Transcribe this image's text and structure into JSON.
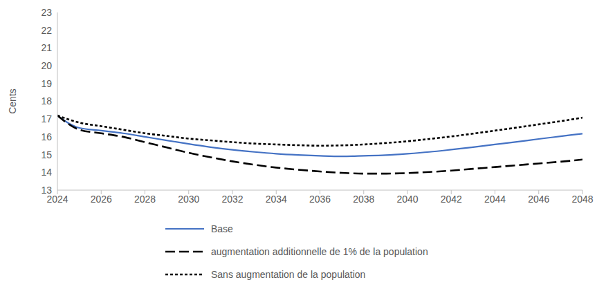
{
  "chart_data": {
    "type": "line",
    "y_label": "Cents",
    "x": [
      2024,
      2025,
      2026,
      2027,
      2028,
      2029,
      2030,
      2031,
      2032,
      2033,
      2034,
      2035,
      2036,
      2037,
      2038,
      2039,
      2040,
      2041,
      2042,
      2043,
      2044,
      2045,
      2046,
      2047,
      2048
    ],
    "xlim": [
      2024,
      2048
    ],
    "xticks": [
      2024,
      2026,
      2028,
      2030,
      2032,
      2034,
      2036,
      2038,
      2040,
      2042,
      2044,
      2046,
      2048
    ],
    "ylim": [
      13,
      23
    ],
    "yticks": [
      13,
      14,
      15,
      16,
      17,
      18,
      19,
      20,
      21,
      22,
      23
    ],
    "grid": false,
    "legend": "bottom",
    "series": [
      {
        "name": "Base",
        "color": "#4472c4",
        "line_style": "solid",
        "values": [
          17.2,
          16.5,
          16.35,
          16.2,
          16.0,
          15.8,
          15.6,
          15.42,
          15.27,
          15.15,
          15.05,
          14.98,
          14.93,
          14.9,
          14.93,
          14.97,
          15.05,
          15.15,
          15.28,
          15.42,
          15.57,
          15.72,
          15.88,
          16.03,
          16.18
        ]
      },
      {
        "name": "augmentation additionnelle de 1% de la population",
        "color": "#000000",
        "line_style": "dashed",
        "values": [
          17.2,
          16.4,
          16.2,
          16.0,
          15.7,
          15.4,
          15.1,
          14.85,
          14.62,
          14.43,
          14.27,
          14.15,
          14.05,
          13.97,
          13.93,
          13.93,
          13.96,
          14.02,
          14.1,
          14.2,
          14.3,
          14.4,
          14.5,
          14.6,
          14.72
        ]
      },
      {
        "name": "Sans augmentation de la population",
        "color": "#000000",
        "line_style": "dotted",
        "values": [
          17.2,
          16.8,
          16.6,
          16.4,
          16.2,
          16.05,
          15.9,
          15.8,
          15.7,
          15.62,
          15.57,
          15.53,
          15.5,
          15.52,
          15.57,
          15.65,
          15.75,
          15.88,
          16.02,
          16.18,
          16.35,
          16.52,
          16.7,
          16.88,
          17.08
        ]
      }
    ]
  }
}
